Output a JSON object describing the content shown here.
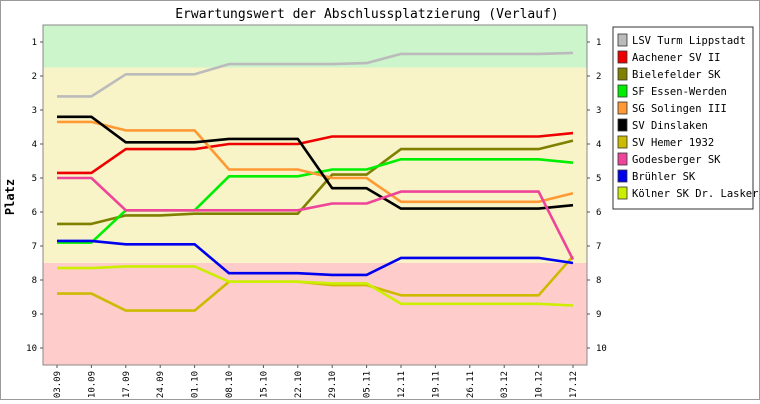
{
  "chart_data": {
    "type": "line",
    "title": "Erwartungswert der Abschlussplatzierung (Verlauf)",
    "ylabel": "Platz",
    "xlabel": "",
    "ylim": [
      10.5,
      0.5
    ],
    "y_ticks": [
      1,
      2,
      3,
      4,
      5,
      6,
      7,
      8,
      9,
      10
    ],
    "y_tick_labels": [
      "1",
      "2",
      "3",
      "4",
      "5",
      "6",
      "7",
      "8",
      "9",
      "10"
    ],
    "categories": [
      "03.09",
      "10.09",
      "17.09",
      "24.09",
      "01.10",
      "08.10",
      "15.10",
      "22.10",
      "29.10",
      "05.11",
      "12.11",
      "19.11",
      "26.11",
      "03.12",
      "10.12",
      "17.12"
    ],
    "zones": [
      {
        "from": 0.5,
        "to": 1.75,
        "color": "#ccf5cc"
      },
      {
        "from": 1.75,
        "to": 7.5,
        "color": "#f8f4c8"
      },
      {
        "from": 7.5,
        "to": 10.5,
        "color": "#ffcccc"
      }
    ],
    "grid": false,
    "legend_position": "right",
    "series": [
      {
        "name": "LSV Turm Lippstadt",
        "color": "#bbbbbb",
        "values": [
          2.6,
          2.6,
          1.95,
          1.95,
          1.95,
          1.65,
          1.65,
          1.65,
          1.65,
          1.62,
          1.35,
          1.35,
          1.35,
          1.35,
          1.35,
          1.32
        ]
      },
      {
        "name": "Aachener SV II",
        "color": "#ee0000",
        "values": [
          4.85,
          4.85,
          4.15,
          4.15,
          4.15,
          4.0,
          4.0,
          4.0,
          3.78,
          3.78,
          3.78,
          3.78,
          3.78,
          3.78,
          3.78,
          3.68
        ]
      },
      {
        "name": "Bielefelder SK",
        "color": "#808000",
        "values": [
          6.35,
          6.35,
          6.1,
          6.1,
          6.05,
          6.05,
          6.05,
          6.05,
          4.9,
          4.9,
          4.15,
          4.15,
          4.15,
          4.15,
          4.15,
          3.9
        ]
      },
      {
        "name": "SF Essen-Werden",
        "color": "#00ee00",
        "values": [
          6.9,
          6.9,
          5.95,
          5.95,
          5.95,
          4.95,
          4.95,
          4.95,
          4.75,
          4.75,
          4.45,
          4.45,
          4.45,
          4.45,
          4.45,
          4.55
        ]
      },
      {
        "name": "SG Solingen III",
        "color": "#ff9933",
        "values": [
          3.35,
          3.35,
          3.6,
          3.6,
          3.6,
          4.75,
          4.75,
          4.75,
          5.0,
          5.0,
          5.7,
          5.7,
          5.7,
          5.7,
          5.7,
          5.45
        ]
      },
      {
        "name": "SV Dinslaken",
        "color": "#000000",
        "values": [
          3.2,
          3.2,
          3.95,
          3.95,
          3.95,
          3.85,
          3.85,
          3.85,
          5.3,
          5.3,
          5.9,
          5.9,
          5.9,
          5.9,
          5.9,
          5.8
        ]
      },
      {
        "name": "SV Hemer 1932",
        "color": "#ccbb00",
        "values": [
          8.4,
          8.4,
          8.9,
          8.9,
          8.9,
          8.05,
          8.05,
          8.05,
          8.15,
          8.15,
          8.45,
          8.45,
          8.45,
          8.45,
          8.45,
          7.3
        ]
      },
      {
        "name": "Godesberger SK",
        "color": "#ee4499",
        "values": [
          5.0,
          5.0,
          5.95,
          5.95,
          5.95,
          5.95,
          5.95,
          5.95,
          5.75,
          5.75,
          5.4,
          5.4,
          5.4,
          5.4,
          5.4,
          7.4
        ]
      },
      {
        "name": "Brühler SK",
        "color": "#0000ee",
        "values": [
          6.85,
          6.85,
          6.95,
          6.95,
          6.95,
          7.8,
          7.8,
          7.8,
          7.85,
          7.85,
          7.35,
          7.35,
          7.35,
          7.35,
          7.35,
          7.5
        ]
      },
      {
        "name": "Kölner SK Dr. Lasker",
        "color": "#ccee00",
        "values": [
          7.65,
          7.65,
          7.6,
          7.6,
          7.6,
          8.05,
          8.05,
          8.05,
          8.1,
          8.1,
          8.7,
          8.7,
          8.7,
          8.7,
          8.7,
          8.75
        ]
      }
    ]
  }
}
